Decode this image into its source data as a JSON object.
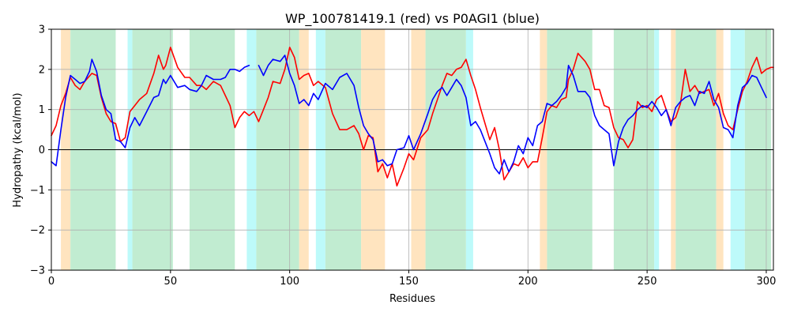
{
  "chart_data": {
    "type": "line",
    "title": "WP_100781419.1 (red) vs P0AGI1 (blue)",
    "xlabel": "Residues",
    "ylabel": "Hydropathy (kcal/mol)",
    "xlim": [
      0,
      303
    ],
    "ylim": [
      -3,
      3
    ],
    "xticks": [
      0,
      50,
      100,
      150,
      200,
      250,
      300
    ],
    "yticks": [
      -3,
      -2,
      -1,
      0,
      1,
      2,
      3
    ],
    "grid": true,
    "colors": {
      "red": "#ff0000",
      "blue": "#0000ff",
      "orange_region": "#ffe4bf",
      "green_region": "#c1ecd1",
      "cyan_region": "#bdfafa",
      "zero_line": "#000000",
      "grid": "#b0b0b0"
    },
    "regions": [
      {
        "start": 4,
        "end": 8,
        "color": "orange"
      },
      {
        "start": 8,
        "end": 27,
        "color": "green"
      },
      {
        "start": 32,
        "end": 34,
        "color": "cyan"
      },
      {
        "start": 34,
        "end": 51,
        "color": "green"
      },
      {
        "start": 58,
        "end": 77,
        "color": "green"
      },
      {
        "start": 82,
        "end": 86,
        "color": "cyan"
      },
      {
        "start": 86,
        "end": 104,
        "color": "green"
      },
      {
        "start": 104,
        "end": 108,
        "color": "orange"
      },
      {
        "start": 111,
        "end": 115,
        "color": "cyan"
      },
      {
        "start": 115,
        "end": 130,
        "color": "green"
      },
      {
        "start": 130,
        "end": 140,
        "color": "orange"
      },
      {
        "start": 151,
        "end": 157,
        "color": "orange"
      },
      {
        "start": 157,
        "end": 174,
        "color": "green"
      },
      {
        "start": 174,
        "end": 177,
        "color": "cyan"
      },
      {
        "start": 205,
        "end": 208,
        "color": "orange"
      },
      {
        "start": 208,
        "end": 227,
        "color": "green"
      },
      {
        "start": 236,
        "end": 253,
        "color": "green"
      },
      {
        "start": 253,
        "end": 255,
        "color": "cyan"
      },
      {
        "start": 260,
        "end": 262,
        "color": "orange"
      },
      {
        "start": 262,
        "end": 279,
        "color": "green"
      },
      {
        "start": 279,
        "end": 282,
        "color": "orange"
      },
      {
        "start": 285,
        "end": 291,
        "color": "cyan"
      },
      {
        "start": 291,
        "end": 302,
        "color": "green"
      }
    ],
    "series": [
      {
        "name": "WP_100781419.1 (red)",
        "color": "#ff0000",
        "x": [
          0,
          2,
          4,
          6,
          8,
          10,
          12,
          14,
          17,
          19,
          21,
          23,
          25,
          27,
          29,
          31,
          33,
          35,
          37,
          40,
          43,
          45,
          47,
          48,
          50,
          53,
          56,
          58,
          61,
          63,
          65,
          68,
          71,
          73,
          75,
          77,
          79,
          81,
          83,
          85,
          87,
          89,
          91,
          93,
          96,
          98,
          100,
          102,
          104,
          106,
          108,
          110,
          112,
          115,
          118,
          121,
          124,
          127,
          129,
          131,
          133,
          135,
          137,
          139,
          141,
          143,
          145,
          148,
          150,
          152,
          155,
          158,
          160,
          162,
          164,
          166,
          168,
          170,
          172,
          174,
          176,
          178,
          180,
          182,
          184,
          186,
          188,
          190,
          192,
          194,
          196,
          198,
          200,
          202,
          204,
          206,
          208,
          210,
          212,
          214,
          216,
          217,
          219,
          221,
          224,
          226,
          228,
          230,
          232,
          234,
          236,
          238,
          240,
          242,
          244,
          246,
          248,
          250,
          252,
          254,
          256,
          258,
          260,
          262,
          264,
          266,
          268,
          270,
          272,
          274,
          276,
          278,
          280,
          282,
          284,
          286,
          288,
          290,
          292,
          294,
          296,
          298,
          300,
          302
        ],
        "values": [
          0.35,
          0.6,
          1.1,
          1.4,
          1.8,
          1.6,
          1.5,
          1.7,
          1.9,
          1.85,
          1.3,
          0.9,
          0.7,
          0.65,
          0.2,
          0.3,
          0.95,
          1.1,
          1.25,
          1.4,
          1.9,
          2.35,
          2.0,
          2.1,
          2.55,
          2.05,
          1.8,
          1.8,
          1.6,
          1.6,
          1.5,
          1.7,
          1.6,
          1.35,
          1.1,
          0.55,
          0.8,
          0.95,
          0.85,
          0.95,
          0.7,
          1.0,
          1.3,
          1.7,
          1.65,
          2.0,
          2.55,
          2.3,
          1.75,
          1.85,
          1.9,
          1.6,
          1.7,
          1.55,
          0.9,
          0.5,
          0.5,
          0.6,
          0.4,
          0.0,
          0.35,
          0.3,
          -0.55,
          -0.35,
          -0.7,
          -0.35,
          -0.9,
          -0.45,
          -0.1,
          -0.25,
          0.3,
          0.5,
          0.9,
          1.25,
          1.6,
          1.9,
          1.85,
          2.0,
          2.05,
          2.25,
          1.85,
          1.5,
          1.05,
          0.65,
          0.25,
          0.55,
          0.0,
          -0.75,
          -0.55,
          -0.35,
          -0.4,
          -0.2,
          -0.45,
          -0.3,
          -0.3,
          0.3,
          0.95,
          1.1,
          1.05,
          1.25,
          1.3,
          1.75,
          2.0,
          2.4,
          2.2,
          2.0,
          1.5,
          1.5,
          1.1,
          1.05,
          0.55,
          0.3,
          0.25,
          0.05,
          0.25,
          1.2,
          1.05,
          1.1,
          0.95,
          1.25,
          1.35,
          1.0,
          0.7,
          0.8,
          1.15,
          2.0,
          1.45,
          1.6,
          1.4,
          1.45,
          1.5,
          1.1,
          1.4,
          0.9,
          0.6,
          0.5,
          1.0,
          1.45,
          1.7,
          2.05,
          2.3,
          1.9,
          2.0,
          2.05
        ],
        "end_x": 303
      },
      {
        "name": "P0AGI1 (blue)",
        "color": "#0000ff",
        "segments": [
          {
            "x": [
              0,
              2,
              4,
              6,
              8,
              10,
              12,
              14,
              16,
              17,
              19,
              21,
              23,
              25,
              27,
              29,
              31,
              33,
              35,
              37,
              40,
              43,
              45,
              47,
              48,
              50,
              53,
              56,
              58,
              61,
              63,
              65,
              68,
              71,
              73,
              75,
              77,
              79,
              81,
              83
            ],
            "values": [
              -0.3,
              -0.4,
              0.5,
              1.3,
              1.85,
              1.75,
              1.65,
              1.7,
              1.95,
              2.25,
              1.95,
              1.35,
              1.0,
              0.9,
              0.25,
              0.2,
              0.05,
              0.55,
              0.8,
              0.6,
              0.95,
              1.3,
              1.35,
              1.75,
              1.65,
              1.85,
              1.55,
              1.6,
              1.5,
              1.45,
              1.6,
              1.85,
              1.75,
              1.75,
              1.8,
              2.0,
              2.0,
              1.95,
              2.05,
              2.1
            ]
          },
          {
            "x": [
              87,
              89,
              91,
              93,
              96,
              98,
              100,
              102,
              104,
              106,
              108,
              110,
              112,
              115,
              118,
              121,
              124,
              127,
              129,
              131,
              133,
              135,
              137,
              139,
              141,
              143,
              145,
              148,
              150,
              152,
              155,
              158,
              160,
              162,
              164,
              166,
              168,
              170,
              172,
              174,
              176,
              178,
              180,
              182,
              184,
              186,
              188,
              190,
              192,
              194,
              196,
              198,
              200,
              202,
              204,
              206,
              208,
              210,
              212,
              214,
              216,
              217,
              219,
              221,
              224,
              226,
              228,
              230,
              232,
              234,
              236,
              238,
              240,
              242,
              244,
              246,
              248,
              250,
              252,
              254,
              256,
              258,
              260,
              262,
              264,
              266,
              268,
              270,
              272,
              274,
              276,
              278,
              280,
              282,
              284,
              286,
              288,
              290,
              292,
              294,
              296,
              298,
              300
            ],
            "values": [
              2.1,
              1.85,
              2.1,
              2.25,
              2.2,
              2.35,
              1.9,
              1.6,
              1.15,
              1.25,
              1.1,
              1.4,
              1.25,
              1.65,
              1.5,
              1.8,
              1.9,
              1.6,
              1.05,
              0.6,
              0.4,
              0.25,
              -0.3,
              -0.25,
              -0.4,
              -0.35,
              0.0,
              0.05,
              0.35,
              0.0,
              0.4,
              0.9,
              1.25,
              1.45,
              1.55,
              1.35,
              1.55,
              1.75,
              1.6,
              1.3,
              0.6,
              0.7,
              0.5,
              0.2,
              -0.1,
              -0.45,
              -0.6,
              -0.25,
              -0.55,
              -0.3,
              0.1,
              -0.1,
              0.3,
              0.1,
              0.6,
              0.7,
              1.15,
              1.1,
              1.2,
              1.35,
              1.55,
              2.1,
              1.85,
              1.45,
              1.45,
              1.3,
              0.85,
              0.6,
              0.5,
              0.4,
              -0.4,
              0.2,
              0.55,
              0.75,
              0.85,
              1.0,
              1.1,
              1.05,
              1.2,
              1.05,
              0.85,
              1.0,
              0.6,
              1.05,
              1.2,
              1.3,
              1.35,
              1.1,
              1.45,
              1.4,
              1.7,
              1.25,
              1.05,
              0.55,
              0.5,
              0.3,
              1.1,
              1.55,
              1.65,
              1.85,
              1.8,
              1.55,
              1.3
            ]
          }
        ]
      }
    ]
  }
}
